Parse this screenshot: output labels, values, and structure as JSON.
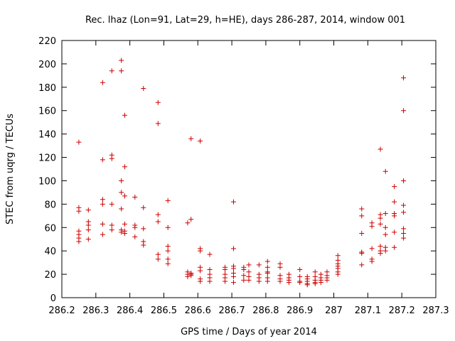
{
  "chart_data": {
    "type": "scatter",
    "title": "Rec. lhaz (Lon=91, Lat=29, h=HE), days 286-287, 2014, window 001",
    "xlabel": "GPS time / Days of year 2014",
    "ylabel": "STEC from uqrg / TECUs",
    "xlim": [
      286.2,
      287.3
    ],
    "ylim": [
      0,
      220
    ],
    "xticks": [
      "286.2",
      "286.3",
      "286.4",
      "286.5",
      "286.6",
      "286.7",
      "286.8",
      "286.9",
      "287",
      "287.1",
      "287.2",
      "287.3"
    ],
    "yticks": [
      "0",
      "20",
      "40",
      "60",
      "80",
      "100",
      "120",
      "140",
      "160",
      "180",
      "200",
      "220"
    ],
    "grid": false,
    "marker": "+",
    "color": "#cc0000",
    "points": [
      [
        286.25,
        133
      ],
      [
        286.25,
        77
      ],
      [
        286.25,
        74
      ],
      [
        286.25,
        57
      ],
      [
        286.25,
        54
      ],
      [
        286.25,
        51
      ],
      [
        286.25,
        48
      ],
      [
        286.278,
        75
      ],
      [
        286.278,
        65
      ],
      [
        286.278,
        62
      ],
      [
        286.278,
        58
      ],
      [
        286.278,
        50
      ],
      [
        286.32,
        184
      ],
      [
        286.32,
        118
      ],
      [
        286.32,
        84
      ],
      [
        286.32,
        80
      ],
      [
        286.32,
        63
      ],
      [
        286.32,
        54
      ],
      [
        286.347,
        194
      ],
      [
        286.347,
        122
      ],
      [
        286.347,
        119
      ],
      [
        286.347,
        80
      ],
      [
        286.347,
        62
      ],
      [
        286.347,
        58
      ],
      [
        286.375,
        203
      ],
      [
        286.375,
        194
      ],
      [
        286.375,
        100
      ],
      [
        286.375,
        90
      ],
      [
        286.375,
        76
      ],
      [
        286.375,
        58
      ],
      [
        286.375,
        56
      ],
      [
        286.385,
        156
      ],
      [
        286.385,
        112
      ],
      [
        286.385,
        87
      ],
      [
        286.385,
        63
      ],
      [
        286.385,
        57
      ],
      [
        286.385,
        55
      ],
      [
        286.415,
        86
      ],
      [
        286.415,
        62
      ],
      [
        286.415,
        60
      ],
      [
        286.415,
        52
      ],
      [
        286.44,
        179
      ],
      [
        286.44,
        77
      ],
      [
        286.44,
        59
      ],
      [
        286.44,
        48
      ],
      [
        286.44,
        45
      ],
      [
        286.483,
        167
      ],
      [
        286.483,
        149
      ],
      [
        286.483,
        71
      ],
      [
        286.483,
        65
      ],
      [
        286.483,
        37
      ],
      [
        286.483,
        33
      ],
      [
        286.512,
        83
      ],
      [
        286.512,
        60
      ],
      [
        286.512,
        44
      ],
      [
        286.512,
        40
      ],
      [
        286.512,
        33
      ],
      [
        286.512,
        29
      ],
      [
        286.57,
        64
      ],
      [
        286.57,
        22
      ],
      [
        286.57,
        20
      ],
      [
        286.57,
        18
      ],
      [
        286.58,
        136
      ],
      [
        286.58,
        67
      ],
      [
        286.58,
        21
      ],
      [
        286.58,
        20
      ],
      [
        286.58,
        19
      ],
      [
        286.607,
        134
      ],
      [
        286.607,
        42
      ],
      [
        286.607,
        40
      ],
      [
        286.607,
        26
      ],
      [
        286.607,
        23
      ],
      [
        286.607,
        16
      ],
      [
        286.607,
        14
      ],
      [
        286.635,
        37
      ],
      [
        286.635,
        24
      ],
      [
        286.635,
        20
      ],
      [
        286.635,
        17
      ],
      [
        286.635,
        14
      ],
      [
        286.68,
        26
      ],
      [
        286.68,
        24
      ],
      [
        286.68,
        20
      ],
      [
        286.68,
        17
      ],
      [
        286.68,
        14
      ],
      [
        286.705,
        82
      ],
      [
        286.705,
        42
      ],
      [
        286.705,
        27
      ],
      [
        286.705,
        25
      ],
      [
        286.705,
        21
      ],
      [
        286.705,
        18
      ],
      [
        286.705,
        13
      ],
      [
        286.735,
        26
      ],
      [
        286.735,
        24
      ],
      [
        286.735,
        19
      ],
      [
        286.735,
        15
      ],
      [
        286.75,
        28
      ],
      [
        286.75,
        22
      ],
      [
        286.75,
        18
      ],
      [
        286.75,
        15
      ],
      [
        286.78,
        28
      ],
      [
        286.78,
        20
      ],
      [
        286.78,
        17
      ],
      [
        286.78,
        14
      ],
      [
        286.805,
        31
      ],
      [
        286.805,
        26
      ],
      [
        286.805,
        22
      ],
      [
        286.805,
        21
      ],
      [
        286.805,
        17
      ],
      [
        286.805,
        14
      ],
      [
        286.842,
        29
      ],
      [
        286.842,
        26
      ],
      [
        286.842,
        19
      ],
      [
        286.842,
        16
      ],
      [
        286.842,
        14
      ],
      [
        286.868,
        20
      ],
      [
        286.868,
        17
      ],
      [
        286.868,
        15
      ],
      [
        286.868,
        13
      ],
      [
        286.9,
        24
      ],
      [
        286.9,
        18
      ],
      [
        286.9,
        14
      ],
      [
        286.9,
        13
      ],
      [
        286.922,
        18
      ],
      [
        286.922,
        16
      ],
      [
        286.922,
        14
      ],
      [
        286.922,
        12
      ],
      [
        286.922,
        11
      ],
      [
        286.945,
        22
      ],
      [
        286.945,
        18
      ],
      [
        286.945,
        15
      ],
      [
        286.945,
        13
      ],
      [
        286.945,
        12
      ],
      [
        286.962,
        20
      ],
      [
        286.962,
        17
      ],
      [
        286.962,
        15
      ],
      [
        286.962,
        13
      ],
      [
        286.98,
        22
      ],
      [
        286.98,
        19
      ],
      [
        286.98,
        17
      ],
      [
        286.98,
        15
      ],
      [
        287.012,
        36
      ],
      [
        287.012,
        32
      ],
      [
        287.012,
        29
      ],
      [
        287.012,
        27
      ],
      [
        287.012,
        25
      ],
      [
        287.012,
        22
      ],
      [
        287.012,
        20
      ],
      [
        287.082,
        76
      ],
      [
        287.082,
        70
      ],
      [
        287.082,
        55
      ],
      [
        287.082,
        39
      ],
      [
        287.082,
        38
      ],
      [
        287.082,
        28
      ],
      [
        287.112,
        64
      ],
      [
        287.112,
        61
      ],
      [
        287.112,
        42
      ],
      [
        287.112,
        33
      ],
      [
        287.112,
        31
      ],
      [
        287.137,
        127
      ],
      [
        287.137,
        71
      ],
      [
        287.137,
        68
      ],
      [
        287.137,
        63
      ],
      [
        287.137,
        44
      ],
      [
        287.137,
        40
      ],
      [
        287.137,
        38
      ],
      [
        287.152,
        108
      ],
      [
        287.152,
        72
      ],
      [
        287.152,
        60
      ],
      [
        287.152,
        54
      ],
      [
        287.152,
        43
      ],
      [
        287.152,
        40
      ],
      [
        287.178,
        95
      ],
      [
        287.178,
        82
      ],
      [
        287.178,
        72
      ],
      [
        287.178,
        70
      ],
      [
        287.178,
        56
      ],
      [
        287.178,
        43
      ],
      [
        287.205,
        188
      ],
      [
        287.205,
        160
      ],
      [
        287.205,
        100
      ],
      [
        287.205,
        79
      ],
      [
        287.205,
        73
      ],
      [
        287.205,
        59
      ],
      [
        287.205,
        55
      ],
      [
        287.205,
        51
      ]
    ]
  }
}
